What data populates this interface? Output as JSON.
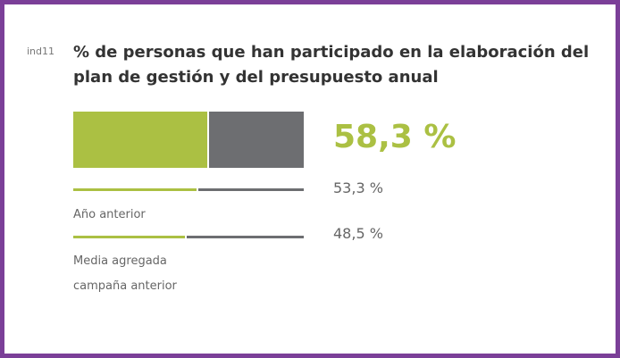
{
  "chart_data": {
    "type": "bar",
    "code": "ind11",
    "title": "% de personas que han participado en la elaboración del plan de gestión y del presupuesto anual",
    "categories": [
      null,
      "Año anterior",
      "Media agregada campaña anterior"
    ],
    "values": [
      58.3,
      53.3,
      48.5
    ],
    "value_labels": [
      "58,3 %",
      "53,3 %",
      "48,5 %"
    ],
    "xlim": [
      0,
      100
    ],
    "color": "#abc043",
    "rest_color": "#6d6e71",
    "border_color": "#7b3f98"
  }
}
